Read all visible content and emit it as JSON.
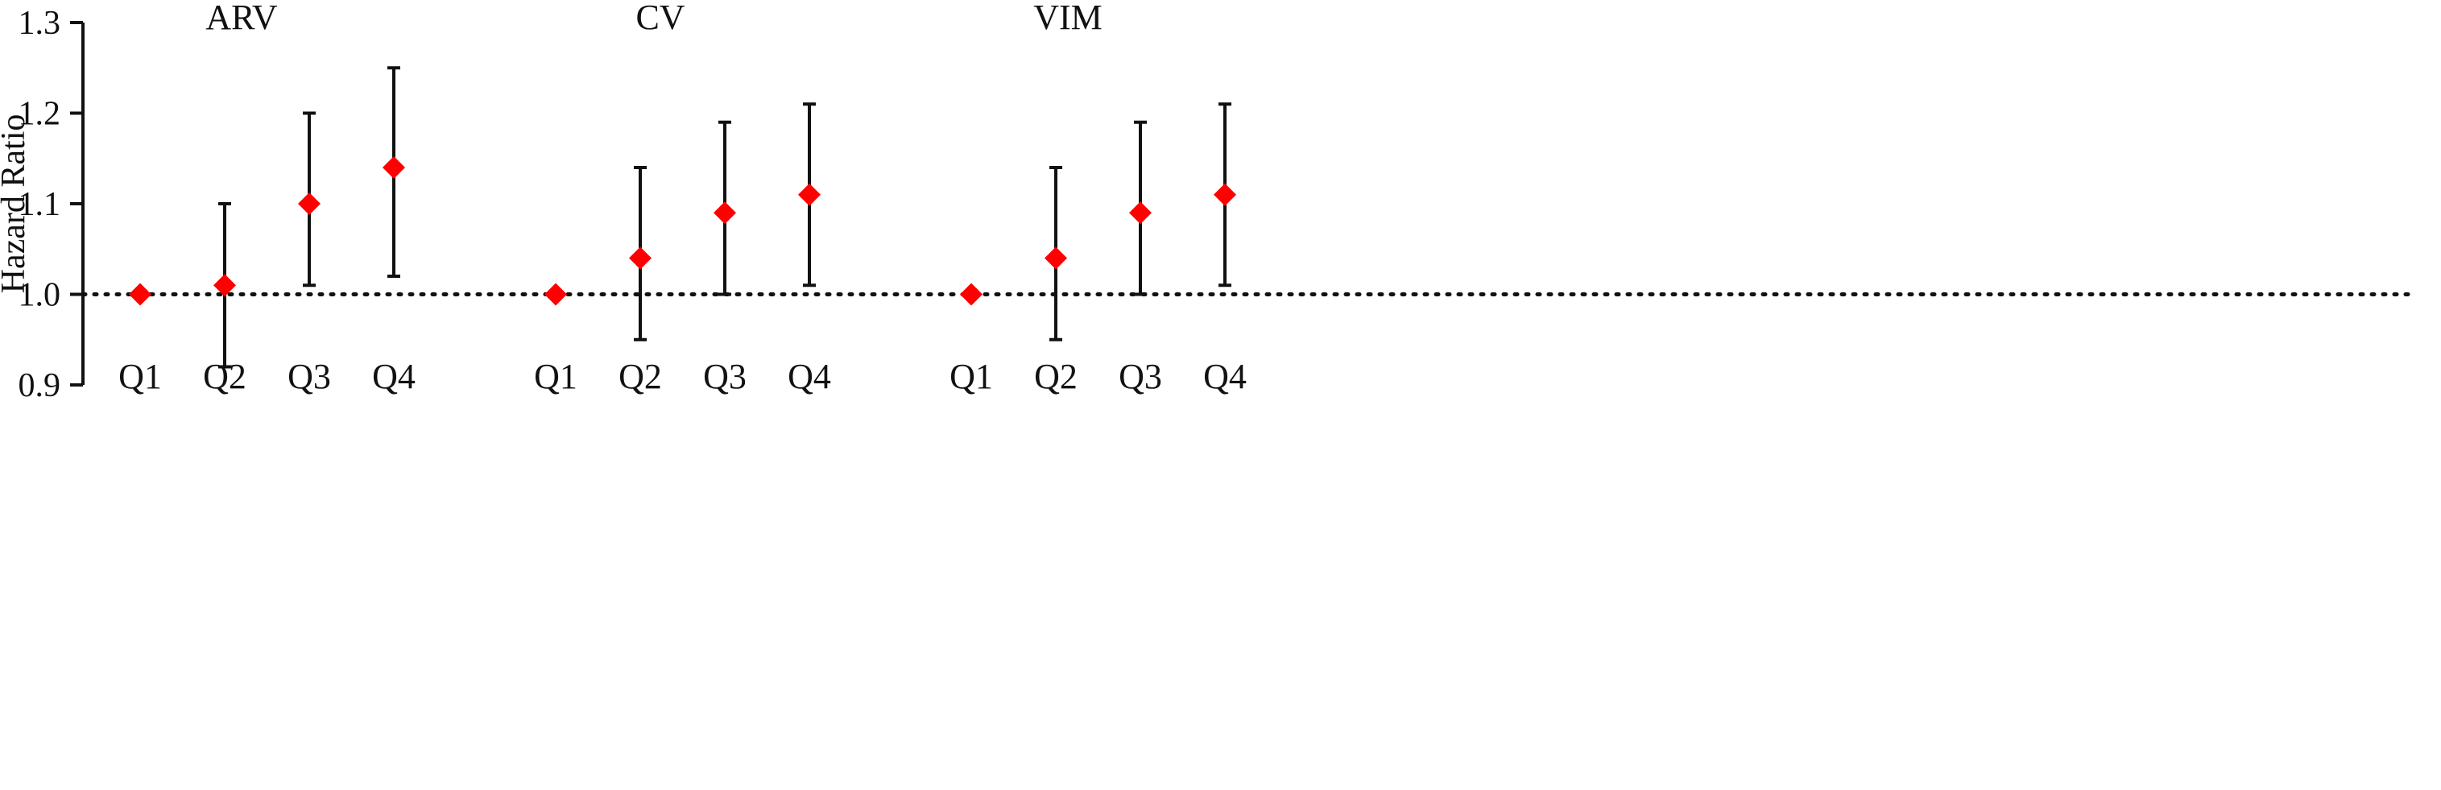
{
  "chart_data": {
    "type": "scatter",
    "subtype": "forest-plot-with-error-bars",
    "ylabel": "Hazard Ratio",
    "ylim": [
      0.9,
      1.3
    ],
    "yticks": [
      "0.9",
      "1.0",
      "1.1",
      "1.2",
      "1.3"
    ],
    "reference_line": {
      "y": 1.0,
      "style": "dotted"
    },
    "grid": false,
    "marker": "diamond",
    "marker_color": "#ff0000",
    "errorbar_color": "#111111",
    "groups": [
      {
        "title": "ARV",
        "categories": [
          "Q1",
          "Q2",
          "Q3",
          "Q4"
        ],
        "values": [
          1.0,
          1.01,
          1.1,
          1.14
        ],
        "lower": [
          1.0,
          0.92,
          1.01,
          1.02
        ],
        "upper": [
          1.0,
          1.1,
          1.2,
          1.25
        ]
      },
      {
        "title": "CV",
        "categories": [
          "Q1",
          "Q2",
          "Q3",
          "Q4"
        ],
        "values": [
          1.0,
          1.04,
          1.09,
          1.11
        ],
        "lower": [
          1.0,
          0.95,
          1.0,
          1.01
        ],
        "upper": [
          1.0,
          1.14,
          1.19,
          1.21
        ]
      },
      {
        "title": "VIM",
        "categories": [
          "Q1",
          "Q2",
          "Q3",
          "Q4"
        ],
        "values": [
          1.0,
          1.04,
          1.09,
          1.11
        ],
        "lower": [
          1.0,
          0.95,
          1.0,
          1.01
        ],
        "upper": [
          1.0,
          1.14,
          1.19,
          1.21
        ]
      }
    ]
  }
}
